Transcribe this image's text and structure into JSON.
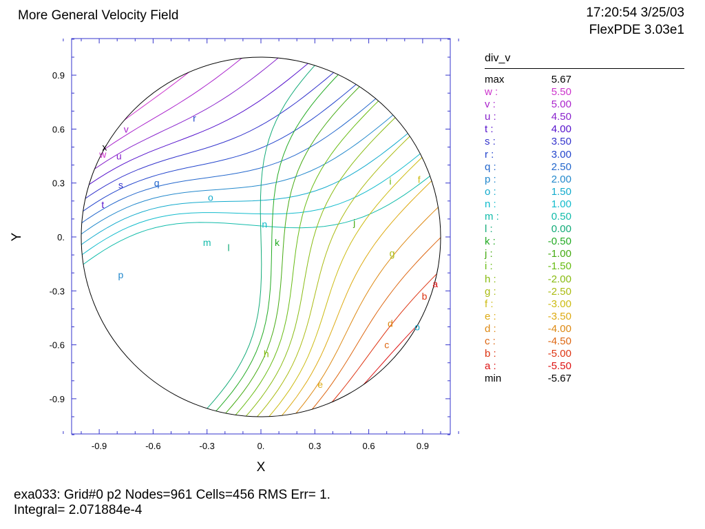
{
  "header": {
    "title": "More General Velocity Field",
    "timestamp": "17:20:54 3/25/03",
    "version": "FlexPDE 3.03e1"
  },
  "footer": {
    "line1": "exa033:  Grid#0  p2  Nodes=961 Cells=456 RMS Err= 1.",
    "line2": "Integral=  2.071884e-4"
  },
  "legend": {
    "title": "div_v",
    "rows": [
      {
        "key": "max",
        "value": "5.67",
        "color": "#000000"
      },
      {
        "key": "w :",
        "value": "5.50",
        "color": "#cc33cc"
      },
      {
        "key": "v :",
        "value": "5.00",
        "color": "#aa22cc"
      },
      {
        "key": "u :",
        "value": "4.50",
        "color": "#8822cc"
      },
      {
        "key": "t :",
        "value": "4.00",
        "color": "#5511cc"
      },
      {
        "key": "s :",
        "value": "3.50",
        "color": "#3333cc"
      },
      {
        "key": "r :",
        "value": "3.00",
        "color": "#2244cc"
      },
      {
        "key": "q :",
        "value": "2.50",
        "color": "#2266cc"
      },
      {
        "key": "p :",
        "value": "2.00",
        "color": "#2288cc"
      },
      {
        "key": "o :",
        "value": "1.50",
        "color": "#11aacc"
      },
      {
        "key": "n :",
        "value": "1.00",
        "color": "#11bbcc"
      },
      {
        "key": "m :",
        "value": "0.50",
        "color": "#11bbaa"
      },
      {
        "key": "l :",
        "value": "0.00",
        "color": "#11aa77"
      },
      {
        "key": "k :",
        "value": "-0.50",
        "color": "#22aa22"
      },
      {
        "key": "j :",
        "value": "-1.00",
        "color": "#44aa11"
      },
      {
        "key": "i :",
        "value": "-1.50",
        "color": "#66bb11"
      },
      {
        "key": "h :",
        "value": "-2.00",
        "color": "#88bb11"
      },
      {
        "key": "g :",
        "value": "-2.50",
        "color": "#aabb11"
      },
      {
        "key": "f :",
        "value": "-3.00",
        "color": "#ccbb11"
      },
      {
        "key": "e :",
        "value": "-3.50",
        "color": "#ddaa11"
      },
      {
        "key": "d :",
        "value": "-4.00",
        "color": "#dd8811"
      },
      {
        "key": "c :",
        "value": "-4.50",
        "color": "#dd6611"
      },
      {
        "key": "b :",
        "value": "-5.00",
        "color": "#dd3311"
      },
      {
        "key": "a :",
        "value": "-5.50",
        "color": "#dd1111"
      },
      {
        "key": "min",
        "value": "-5.67",
        "color": "#000000"
      }
    ]
  },
  "chart_data": {
    "type": "contour",
    "xlabel": "X",
    "ylabel": "Y",
    "xlim": [
      -1.1,
      1.1
    ],
    "ylim": [
      -1.1,
      1.1
    ],
    "x_ticks": [
      "-0.9",
      "-0.6",
      "-0.3",
      "0.",
      "0.3",
      "0.6",
      "0.9"
    ],
    "y_ticks": [
      "0.9",
      "0.6",
      "0.3",
      "0.",
      "-0.3",
      "-0.6",
      "-0.9"
    ],
    "domain": "unit circle",
    "field": "div_v",
    "contour_labels": [
      {
        "label": "x",
        "x": -0.87,
        "y": 0.5
      },
      {
        "label": "w",
        "x": -0.88,
        "y": 0.46
      },
      {
        "label": "v",
        "x": -0.75,
        "y": 0.6
      },
      {
        "label": "u",
        "x": -0.79,
        "y": 0.45
      },
      {
        "label": "t",
        "x": -0.88,
        "y": 0.18
      },
      {
        "label": "s",
        "x": -0.78,
        "y": 0.29
      },
      {
        "label": "r",
        "x": -0.37,
        "y": 0.66
      },
      {
        "label": "q",
        "x": -0.58,
        "y": 0.3
      },
      {
        "label": "p",
        "x": -0.78,
        "y": -0.21
      },
      {
        "label": "o",
        "x": -0.28,
        "y": 0.22
      },
      {
        "label": "n",
        "x": 0.02,
        "y": 0.07
      },
      {
        "label": "m",
        "x": -0.3,
        "y": -0.03
      },
      {
        "label": "l",
        "x": -0.18,
        "y": -0.06
      },
      {
        "label": "k",
        "x": 0.09,
        "y": -0.03
      },
      {
        "label": "j",
        "x": 0.52,
        "y": 0.08
      },
      {
        "label": "i",
        "x": 0.72,
        "y": 0.31
      },
      {
        "label": "h",
        "x": 0.03,
        "y": -0.65
      },
      {
        "label": "g",
        "x": 0.73,
        "y": -0.09
      },
      {
        "label": "f",
        "x": 0.88,
        "y": 0.32
      },
      {
        "label": "e",
        "x": 0.33,
        "y": -0.82
      },
      {
        "label": "d",
        "x": 0.72,
        "y": -0.48
      },
      {
        "label": "c",
        "x": 0.7,
        "y": -0.6
      },
      {
        "label": "b",
        "x": 0.91,
        "y": -0.33
      },
      {
        "label": "a",
        "x": 0.97,
        "y": -0.26
      },
      {
        "label": "o",
        "x": 0.87,
        "y": -0.5
      }
    ]
  }
}
